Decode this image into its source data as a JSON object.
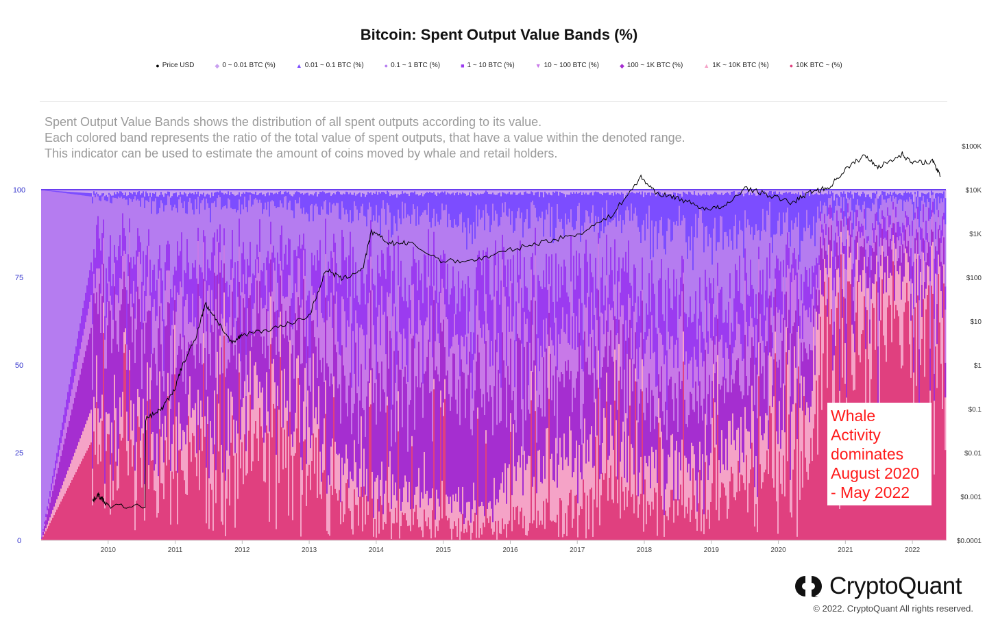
{
  "chart_data": {
    "type": "area",
    "title": "Bitcoin: Spent Output Value Bands (%)",
    "description": [
      "Spent Output Value Bands shows the distribution of all spent outputs according to its value.",
      "Each colored band represents the ratio of the total value of spent outputs, that have a value within the denoted range.",
      "This indicator can be used to estimate the amount of coins moved by whale and retail holders."
    ],
    "legend": [
      {
        "name": "Price USD",
        "marker": "●",
        "color": "#000000"
      },
      {
        "name": "0 ~ 0.01 BTC (%)",
        "marker": "◆",
        "color": "#c9a0f0"
      },
      {
        "name": "0.01 ~ 0.1 BTC (%)",
        "marker": "▲",
        "color": "#7c4dff"
      },
      {
        "name": "0.1 ~ 1 BTC (%)",
        "marker": "●",
        "color": "#b57cf0"
      },
      {
        "name": "1 ~ 10 BTC (%)",
        "marker": "■",
        "color": "#9b3bf0"
      },
      {
        "name": "10 ~ 100 BTC (%)",
        "marker": "▼",
        "color": "#c879e8"
      },
      {
        "name": "100 ~ 1K BTC (%)",
        "marker": "◆",
        "color": "#a52ed0"
      },
      {
        "name": "1K ~ 10K BTC (%)",
        "marker": "▲",
        "color": "#f5a3c7"
      },
      {
        "name": "10K BTC ~ (%)",
        "marker": "●",
        "color": "#e0407f"
      }
    ],
    "x_range": [
      2009.0,
      2022.5
    ],
    "x_ticks": [
      "2010",
      "2011",
      "2012",
      "2013",
      "2014",
      "2015",
      "2016",
      "2017",
      "2018",
      "2019",
      "2020",
      "2021",
      "2022"
    ],
    "y_left": {
      "range": [
        0,
        100
      ],
      "ticks": [
        "0",
        "25",
        "50",
        "75",
        "100"
      ]
    },
    "y_right": {
      "scale": "log",
      "range": [
        0.0001,
        100000
      ],
      "ticks": [
        "$0.0001",
        "$0.001",
        "$0.01",
        "$0.1",
        "$1",
        "$10",
        "$100",
        "$1K",
        "$10K",
        "$100K"
      ]
    },
    "band_series_bottom_to_top": [
      "10K BTC ~",
      "1K ~ 10K BTC",
      "100 ~ 1K BTC",
      "10 ~ 100 BTC",
      "1 ~ 10 BTC",
      "0.1 ~ 1 BTC",
      "0.01 ~ 0.1 BTC",
      "0 ~ 0.01 BTC"
    ],
    "bands_approx": [
      {
        "x": 2009.0,
        "values": [
          0,
          0,
          0,
          0,
          0,
          100,
          0,
          0
        ]
      },
      {
        "x": 2009.8,
        "values": [
          30,
          10,
          25,
          10,
          10,
          13,
          1,
          1
        ]
      },
      {
        "x": 2010.5,
        "values": [
          25,
          12,
          25,
          10,
          10,
          15,
          2,
          1
        ]
      },
      {
        "x": 2011.0,
        "values": [
          20,
          12,
          25,
          12,
          10,
          17,
          3,
          1
        ]
      },
      {
        "x": 2011.5,
        "values": [
          22,
          14,
          22,
          12,
          10,
          16,
          3,
          1
        ]
      },
      {
        "x": 2012.0,
        "values": [
          25,
          15,
          20,
          10,
          10,
          16,
          3,
          1
        ]
      },
      {
        "x": 2012.5,
        "values": [
          30,
          14,
          18,
          10,
          10,
          14,
          3,
          1
        ]
      },
      {
        "x": 2013.0,
        "values": [
          20,
          15,
          20,
          12,
          12,
          16,
          4,
          1
        ]
      },
      {
        "x": 2013.5,
        "values": [
          10,
          10,
          25,
          15,
          15,
          19,
          5,
          1
        ]
      },
      {
        "x": 2014.0,
        "values": [
          8,
          10,
          25,
          18,
          15,
          17,
          6,
          1
        ]
      },
      {
        "x": 2014.5,
        "values": [
          6,
          8,
          30,
          15,
          15,
          18,
          7,
          1
        ]
      },
      {
        "x": 2015.0,
        "values": [
          5,
          8,
          30,
          15,
          15,
          18,
          8,
          1
        ]
      },
      {
        "x": 2015.5,
        "values": [
          4,
          6,
          30,
          16,
          15,
          20,
          8,
          1
        ]
      },
      {
        "x": 2016.0,
        "values": [
          6,
          14,
          25,
          15,
          15,
          17,
          7,
          1
        ]
      },
      {
        "x": 2016.5,
        "values": [
          8,
          16,
          22,
          15,
          14,
          17,
          7,
          1
        ]
      },
      {
        "x": 2017.0,
        "values": [
          10,
          18,
          20,
          14,
          13,
          17,
          7,
          1
        ]
      },
      {
        "x": 2017.5,
        "values": [
          12,
          15,
          20,
          14,
          13,
          17,
          8,
          1
        ]
      },
      {
        "x": 2018.0,
        "values": [
          10,
          12,
          18,
          14,
          14,
          20,
          11,
          1
        ]
      },
      {
        "x": 2018.5,
        "values": [
          10,
          12,
          18,
          14,
          13,
          20,
          12,
          1
        ]
      },
      {
        "x": 2019.0,
        "values": [
          15,
          12,
          18,
          13,
          12,
          18,
          11,
          1
        ]
      },
      {
        "x": 2019.5,
        "values": [
          18,
          14,
          16,
          12,
          12,
          17,
          10,
          1
        ]
      },
      {
        "x": 2020.0,
        "values": [
          18,
          16,
          15,
          12,
          11,
          16,
          11,
          1
        ]
      },
      {
        "x": 2020.5,
        "values": [
          14,
          20,
          15,
          12,
          10,
          16,
          12,
          1
        ]
      },
      {
        "x": 2020.65,
        "values": [
          55,
          20,
          7,
          5,
          4,
          5,
          3,
          1
        ]
      },
      {
        "x": 2021.0,
        "values": [
          60,
          15,
          7,
          5,
          4,
          5,
          3,
          1
        ]
      },
      {
        "x": 2021.5,
        "values": [
          58,
          15,
          8,
          5,
          4,
          6,
          3,
          1
        ]
      },
      {
        "x": 2022.0,
        "values": [
          65,
          12,
          6,
          5,
          4,
          5,
          2,
          1
        ]
      },
      {
        "x": 2022.5,
        "values": [
          60,
          14,
          7,
          5,
          4,
          6,
          3,
          1
        ]
      }
    ],
    "price_usd_approx": [
      {
        "x": 2009.77,
        "y": 0.0008
      },
      {
        "x": 2009.85,
        "y": 0.0011
      },
      {
        "x": 2009.9,
        "y": 0.0009
      },
      {
        "x": 2010.0,
        "y": 0.0006
      },
      {
        "x": 2010.55,
        "y": 0.0006
      },
      {
        "x": 2010.56,
        "y": 0.06
      },
      {
        "x": 2010.8,
        "y": 0.1
      },
      {
        "x": 2011.0,
        "y": 0.3
      },
      {
        "x": 2011.1,
        "y": 0.9
      },
      {
        "x": 2011.3,
        "y": 4
      },
      {
        "x": 2011.45,
        "y": 25
      },
      {
        "x": 2011.6,
        "y": 12
      },
      {
        "x": 2011.85,
        "y": 3
      },
      {
        "x": 2012.0,
        "y": 5
      },
      {
        "x": 2012.5,
        "y": 7
      },
      {
        "x": 2013.0,
        "y": 13
      },
      {
        "x": 2013.25,
        "y": 150
      },
      {
        "x": 2013.5,
        "y": 90
      },
      {
        "x": 2013.8,
        "y": 160
      },
      {
        "x": 2013.93,
        "y": 1100
      },
      {
        "x": 2014.2,
        "y": 600
      },
      {
        "x": 2014.5,
        "y": 600
      },
      {
        "x": 2015.0,
        "y": 230
      },
      {
        "x": 2015.5,
        "y": 250
      },
      {
        "x": 2016.0,
        "y": 420
      },
      {
        "x": 2016.5,
        "y": 650
      },
      {
        "x": 2017.0,
        "y": 950
      },
      {
        "x": 2017.5,
        "y": 2500
      },
      {
        "x": 2017.95,
        "y": 19000
      },
      {
        "x": 2018.2,
        "y": 8000
      },
      {
        "x": 2018.5,
        "y": 6500
      },
      {
        "x": 2018.9,
        "y": 3700
      },
      {
        "x": 2019.2,
        "y": 4000
      },
      {
        "x": 2019.5,
        "y": 11000
      },
      {
        "x": 2019.9,
        "y": 7200
      },
      {
        "x": 2020.2,
        "y": 5000
      },
      {
        "x": 2020.5,
        "y": 9200
      },
      {
        "x": 2020.75,
        "y": 11000
      },
      {
        "x": 2021.0,
        "y": 29000
      },
      {
        "x": 2021.28,
        "y": 60000
      },
      {
        "x": 2021.5,
        "y": 33000
      },
      {
        "x": 2021.85,
        "y": 65000
      },
      {
        "x": 2022.0,
        "y": 40000
      },
      {
        "x": 2022.3,
        "y": 45000
      },
      {
        "x": 2022.42,
        "y": 20000
      }
    ],
    "annotation": "Whale Activity dominates August 2020 - May 2022"
  },
  "branding": {
    "name": "CryptoQuant",
    "copyright": "© 2022. CryptoQuant All rights reserved."
  }
}
